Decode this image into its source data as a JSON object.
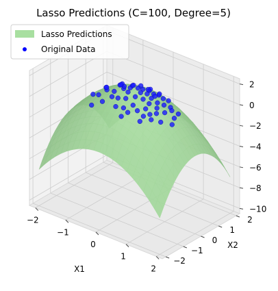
{
  "chart_data": {
    "type": "surface3d",
    "title": "Lasso Predictions (C=100, Degree=5)",
    "xlabel": "X1",
    "ylabel": "X2",
    "zlabel": "",
    "xlim": [
      -2.2,
      2.2
    ],
    "ylim": [
      -2.2,
      2.2
    ],
    "zlim": [
      -10.5,
      2.5
    ],
    "xticks": [
      -2,
      -1,
      0,
      1,
      2
    ],
    "yticks": [
      -2,
      -1,
      0,
      1,
      2
    ],
    "zticks": [
      2,
      0,
      -2,
      -4,
      -6,
      -8,
      -10
    ],
    "xtick_labels": [
      "−2",
      "−1",
      "0",
      "1",
      "2"
    ],
    "ytick_labels": [
      "−2",
      "−1",
      "0",
      "1",
      "2"
    ],
    "ztick_labels": [
      "2",
      "0",
      "−2",
      "−4",
      "−6",
      "−8",
      "−10"
    ],
    "grid": true,
    "legend": {
      "position": "upper-left",
      "entries": [
        {
          "label": "Lasso Predictions",
          "color": "#6fcf6f",
          "marker": "patch"
        },
        {
          "label": "Original Data",
          "color": "#0000ff",
          "marker": "dot"
        }
      ]
    },
    "series": [
      {
        "name": "Lasso Predictions",
        "kind": "surface",
        "color": "#6fcf6f",
        "model": "z = 1 - x^2 - y^2 (approx.)",
        "grid_x": [
          -2.0,
          2.0
        ],
        "grid_y": [
          -2.0,
          2.0
        ]
      },
      {
        "name": "Original Data",
        "kind": "scatter",
        "color": "#0000ff",
        "points": [
          [
            0.6,
            -0.4,
            0.3
          ],
          [
            0.3,
            0.2,
            0.8
          ],
          [
            -0.2,
            0.1,
            0.9
          ],
          [
            0.8,
            0.3,
            0.2
          ],
          [
            0.1,
            -0.8,
            0.2
          ],
          [
            -0.5,
            -0.3,
            0.6
          ],
          [
            0.9,
            -0.6,
            -0.2
          ],
          [
            0.4,
            0.7,
            0.3
          ],
          [
            -0.1,
            -0.2,
            0.9
          ],
          [
            0.2,
            0.5,
            0.7
          ],
          [
            0.7,
            -0.9,
            -0.3
          ],
          [
            -0.3,
            0.4,
            0.7
          ],
          [
            0.5,
            0.1,
            0.7
          ],
          [
            1.0,
            0.0,
            0.0
          ],
          [
            0.0,
            0.9,
            0.2
          ],
          [
            -0.6,
            0.2,
            0.6
          ],
          [
            0.3,
            -0.6,
            0.5
          ],
          [
            0.6,
            0.6,
            0.3
          ],
          [
            -0.4,
            -0.6,
            0.5
          ],
          [
            0.8,
            -0.1,
            0.3
          ],
          [
            0.2,
            -0.3,
            0.9
          ],
          [
            -0.8,
            -0.2,
            0.3
          ],
          [
            0.4,
            -0.2,
            0.8
          ],
          [
            0.1,
            0.3,
            0.9
          ],
          [
            1.1,
            -0.4,
            -0.4
          ],
          [
            -0.2,
            0.7,
            0.5
          ],
          [
            0.5,
            -0.7,
            0.3
          ],
          [
            0.9,
            0.5,
            -0.1
          ],
          [
            -0.7,
            0.5,
            0.3
          ],
          [
            0.0,
            -0.5,
            0.7
          ],
          [
            0.3,
            0.9,
            0.1
          ],
          [
            -0.9,
            -0.5,
            0.0
          ],
          [
            0.7,
            0.1,
            0.5
          ],
          [
            -0.1,
            -0.9,
            0.2
          ],
          [
            0.6,
            -0.2,
            0.6
          ],
          [
            1.2,
            0.2,
            -0.5
          ],
          [
            -0.3,
            -0.1,
            0.9
          ],
          [
            0.2,
            0.0,
            1.0
          ],
          [
            0.8,
            -0.5,
            0.1
          ],
          [
            -0.5,
            0.8,
            0.1
          ],
          [
            0.4,
            0.4,
            0.7
          ],
          [
            -1.0,
            0.1,
            0.0
          ],
          [
            0.1,
            0.6,
            0.6
          ],
          [
            0.9,
            -0.3,
            0.1
          ],
          [
            -0.6,
            -0.8,
            0.0
          ],
          [
            0.5,
            0.3,
            0.7
          ],
          [
            0.0,
            0.2,
            1.0
          ],
          [
            -0.4,
            0.1,
            0.8
          ],
          [
            0.7,
            -0.7,
            0.0
          ],
          [
            1.0,
            0.4,
            -0.2
          ],
          [
            -0.8,
            0.6,
            0.0
          ],
          [
            0.3,
            -0.9,
            0.1
          ],
          [
            -1.2,
            -0.3,
            -0.5
          ],
          [
            0.6,
            0.9,
            -0.2
          ],
          [
            -0.2,
            -0.6,
            0.6
          ],
          [
            1.3,
            -0.1,
            -0.7
          ],
          [
            -1.1,
            0.3,
            -0.3
          ],
          [
            0.2,
            -1.1,
            -0.2
          ],
          [
            -0.9,
            -0.9,
            -0.6
          ],
          [
            1.1,
            0.6,
            -0.6
          ]
        ]
      }
    ]
  }
}
